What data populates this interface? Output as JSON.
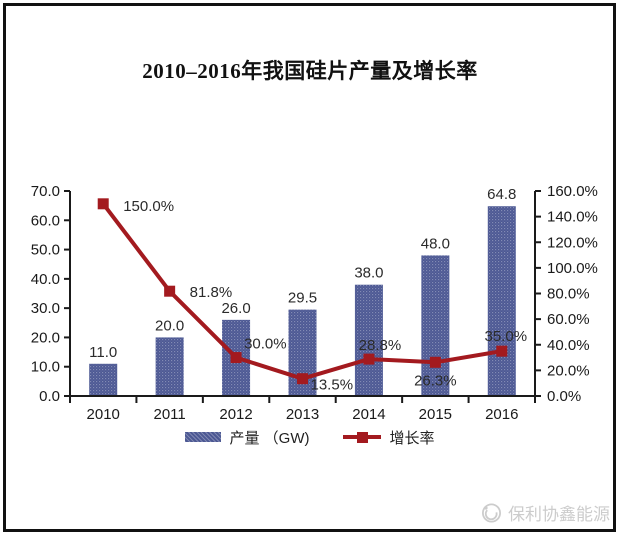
{
  "chart_data": {
    "type": "bar+line",
    "title": "2010–2016年我国硅片产量及增长率",
    "categories": [
      "2010",
      "2011",
      "2012",
      "2013",
      "2014",
      "2015",
      "2016"
    ],
    "series": [
      {
        "name": "产量",
        "type": "bar",
        "axis": "left",
        "color": "#4c5893",
        "values": [
          11.0,
          20.0,
          26.0,
          29.5,
          38.0,
          48.0,
          64.8
        ],
        "labels": [
          "11.0",
          "20.0",
          "26.0",
          "29.5",
          "38.0",
          "48.0",
          "64.8"
        ]
      },
      {
        "name": "增长率",
        "type": "line",
        "axis": "right",
        "color": "#a31a1f",
        "values": [
          150.0,
          81.8,
          30.0,
          13.5,
          28.8,
          26.3,
          35.0
        ],
        "labels": [
          "150.0%",
          "81.8%",
          "30.0%",
          "13.5%",
          "28.8%",
          "26.3%",
          "35.0%"
        ],
        "label_offsets": [
          {
            "dx": 20,
            "dy": 7,
            "anchor": "start"
          },
          {
            "dx": 20,
            "dy": 6,
            "anchor": "start"
          },
          {
            "dx": 8,
            "dy": -9,
            "anchor": "start"
          },
          {
            "dx": 8,
            "dy": 11,
            "anchor": "start"
          },
          {
            "dx": 11,
            "dy": -9,
            "anchor": "middle"
          },
          {
            "dx": 0,
            "dy": 23,
            "anchor": "middle"
          },
          {
            "dx": 4,
            "dy": -10,
            "anchor": "middle"
          }
        ]
      }
    ],
    "left_axis": {
      "min": 0,
      "max": 70,
      "step": 10,
      "tick_labels": [
        "0.0",
        "10.0",
        "20.0",
        "30.0",
        "40.0",
        "50.0",
        "60.0",
        "70.0"
      ]
    },
    "right_axis": {
      "min": 0,
      "max": 160,
      "step": 20,
      "tick_labels": [
        "0.0%",
        "20.0%",
        "40.0%",
        "60.0%",
        "80.0%",
        "100.0%",
        "120.0%",
        "140.0%",
        "160.0%"
      ]
    },
    "grid": false,
    "legend_position": "bottom",
    "legend_labels": [
      "产量 （GW)",
      "增长率"
    ]
  },
  "watermark": {
    "text": "保利协鑫能源",
    "logo": "gcl-circle-logo",
    "color": "#cccccc"
  }
}
